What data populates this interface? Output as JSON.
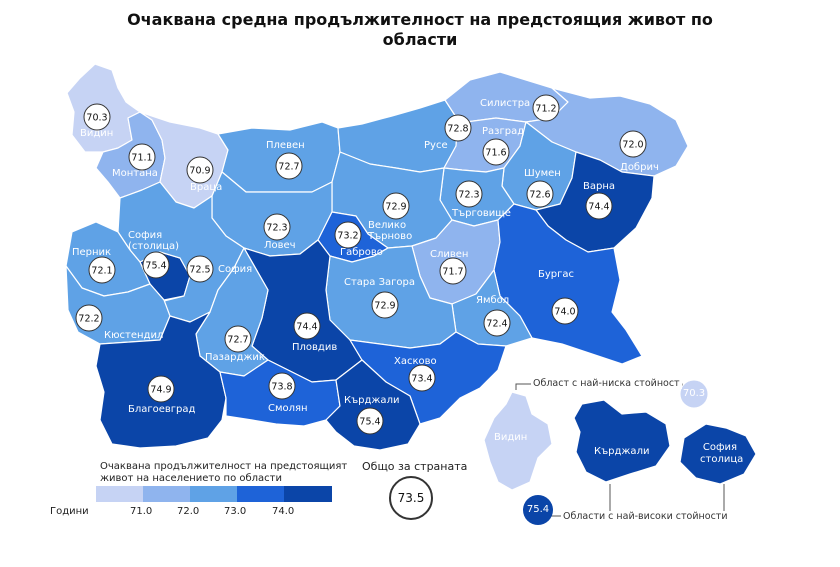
{
  "title": {
    "line1": "Очаквана средна продължителност на предстоящия живот по",
    "line2": "области"
  },
  "colors": {
    "c1": "#c6d3f4",
    "c2": "#8fb4ee",
    "c3": "#5fa2e6",
    "c4": "#1e63d8",
    "c5": "#0b45a8"
  },
  "regions": [
    {
      "name": "Видин",
      "value": "70.3",
      "cls": "c1"
    },
    {
      "name": "Монтана",
      "value": "71.1",
      "cls": "c2"
    },
    {
      "name": "Враца",
      "value": "70.9",
      "cls": "c1"
    },
    {
      "name": "Плевен",
      "value": "72.7",
      "cls": "c3"
    },
    {
      "name": "Русе",
      "value": "72.8",
      "cls": "c3"
    },
    {
      "name": "Силистра",
      "value": "71.2",
      "cls": "c2"
    },
    {
      "name": "Разград",
      "value": "71.6",
      "cls": "c2"
    },
    {
      "name": "Добрич",
      "value": "72.0",
      "cls": "c2"
    },
    {
      "name": "Шумен",
      "value": "72.6",
      "cls": "c3"
    },
    {
      "name": "Търговище",
      "value": "72.3",
      "cls": "c3"
    },
    {
      "name": "Варна",
      "value": "74.4",
      "cls": "c5"
    },
    {
      "name": "Велико Търново",
      "value": "72.9",
      "cls": "c3"
    },
    {
      "name": "Ловеч",
      "value": "72.3",
      "cls": "c3"
    },
    {
      "name": "Габрово",
      "value": "73.2",
      "cls": "c4"
    },
    {
      "name": "София (столица)",
      "value": "75.4",
      "cls": "c5"
    },
    {
      "name": "София",
      "value": "72.5",
      "cls": "c3"
    },
    {
      "name": "Перник",
      "value": "72.1",
      "cls": "c3"
    },
    {
      "name": "Кюстендил",
      "value": "72.2",
      "cls": "c3"
    },
    {
      "name": "Сливен",
      "value": "71.7",
      "cls": "c2"
    },
    {
      "name": "Бургас",
      "value": "74.0",
      "cls": "c4"
    },
    {
      "name": "Ямбол",
      "value": "72.4",
      "cls": "c3"
    },
    {
      "name": "Стара Загора",
      "value": "72.9",
      "cls": "c3"
    },
    {
      "name": "Пловдив",
      "value": "74.4",
      "cls": "c5"
    },
    {
      "name": "Пазарджик",
      "value": "72.7",
      "cls": "c3"
    },
    {
      "name": "Благоевград",
      "value": "74.9",
      "cls": "c5"
    },
    {
      "name": "Смолян",
      "value": "73.8",
      "cls": "c4"
    },
    {
      "name": "Хасково",
      "value": "73.4",
      "cls": "c4"
    },
    {
      "name": "Кърджали",
      "value": "75.4",
      "cls": "c5"
    }
  ],
  "legend": {
    "title_line1": "Очаквана продължителност на предстоящият",
    "title_line2": "живот на населението по области",
    "unit_label": "Години",
    "ticks": [
      "71.0",
      "72.0",
      "73.0",
      "74.0"
    ]
  },
  "total": {
    "label": "Общо за страната",
    "value": "73.5"
  },
  "inset": {
    "lowest_label": "Област с най-ниска стойност",
    "lowest_value": "70.3",
    "lowest_region": "Видин",
    "highest_label": "Области с най-високи стойности",
    "highest_value": "75.4",
    "highest_regions": [
      "Кърджали",
      "София столица"
    ]
  }
}
